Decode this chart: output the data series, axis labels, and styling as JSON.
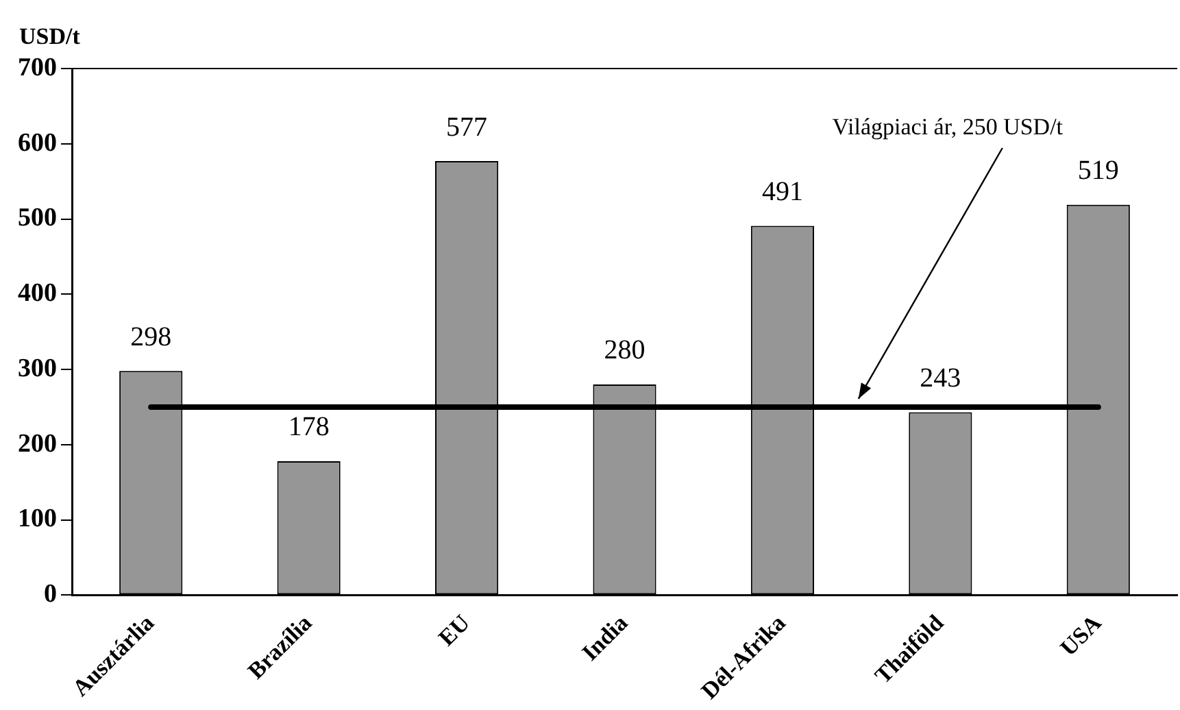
{
  "chart_data": {
    "type": "bar",
    "ylabel": "USD/t",
    "categories": [
      "Ausztárlia",
      "Brazília",
      "EU",
      "India",
      "Dél-Afrika",
      "Thaiföld",
      "USA"
    ],
    "values": [
      298,
      178,
      577,
      280,
      491,
      243,
      519
    ],
    "color": "#969696",
    "ylim": [
      0,
      700
    ],
    "yticks": [
      0,
      100,
      200,
      300,
      400,
      500,
      600,
      700
    ],
    "grid": false,
    "legend": false,
    "data_labels": true,
    "ref_lines": [
      {
        "axis": "y",
        "value": 250,
        "label": "Világpiaci ár, 250 USD/t",
        "color": "#000000"
      }
    ]
  }
}
